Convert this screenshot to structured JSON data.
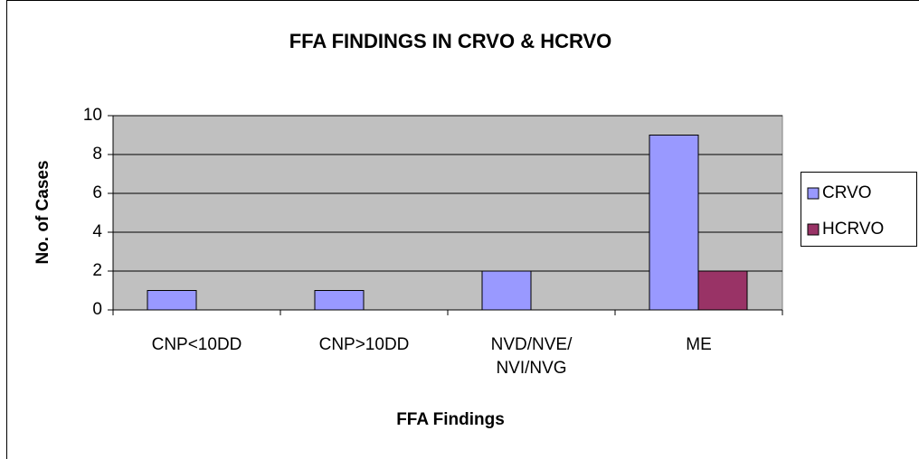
{
  "chart_data": {
    "type": "bar",
    "title": "FFA FINDINGS IN CRVO & HCRVO",
    "x_label": "FFA Findings",
    "y_label": "No. of Cases",
    "categories": [
      "CNP<10DD",
      "CNP>10DD",
      "NVD/NVE/\nNVI/NVG",
      "ME"
    ],
    "series": [
      {
        "name": "CRVO",
        "color": "#9999ff",
        "values": [
          1,
          1,
          2,
          9
        ]
      },
      {
        "name": "HCRVO",
        "color": "#993366",
        "values": [
          0,
          0,
          0,
          2
        ]
      }
    ],
    "ylim": [
      0,
      10
    ],
    "yticks": [
      0,
      2,
      4,
      6,
      8,
      10
    ],
    "grid": true,
    "legend": "right"
  }
}
